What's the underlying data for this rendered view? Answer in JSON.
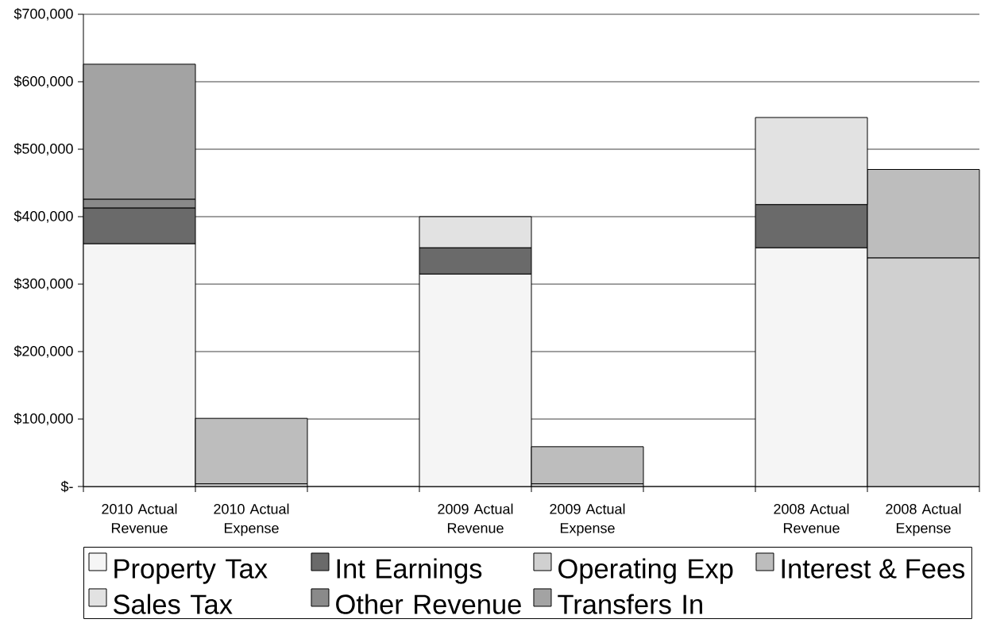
{
  "chart_data": {
    "type": "bar",
    "stacked": true,
    "categories": [
      "2010 Actual Revenue",
      "2010 Actual Expense",
      null,
      "2009 Actual Revenue",
      "2009 Actual Expense",
      null,
      "2008 Actual Revenue",
      "2008 Actual Expense"
    ],
    "series": [
      {
        "name": "Property Tax",
        "color": "#f5f5f5",
        "values": [
          360000,
          null,
          null,
          315000,
          null,
          null,
          354000,
          null
        ]
      },
      {
        "name": "Int Earnings",
        "color": "#6a6a6a",
        "values": [
          53000,
          null,
          null,
          39000,
          null,
          null,
          64000,
          null
        ]
      },
      {
        "name": "Operating Exp",
        "color": "#d0d0d0",
        "values": [
          null,
          4000,
          null,
          null,
          4000,
          null,
          null,
          339000
        ]
      },
      {
        "name": "Interest & Fees",
        "color": "#bdbdbd",
        "values": [
          null,
          97000,
          null,
          null,
          55000,
          null,
          null,
          131000
        ]
      },
      {
        "name": "Sales Tax",
        "color": "#e2e2e2",
        "values": [
          null,
          null,
          null,
          46000,
          null,
          null,
          129000,
          null
        ]
      },
      {
        "name": "Other Revenue",
        "color": "#8a8a8a",
        "values": [
          13000,
          null,
          null,
          null,
          null,
          null,
          null,
          null
        ]
      },
      {
        "name": "Transfers In",
        "color": "#a3a3a3",
        "values": [
          200000,
          null,
          null,
          null,
          null,
          null,
          null,
          null
        ]
      }
    ],
    "ylim": [
      0,
      700000
    ],
    "yticks": [
      {
        "value": 0,
        "label": "$-"
      },
      {
        "value": 100000,
        "label": "$100,000"
      },
      {
        "value": 200000,
        "label": "$200,000"
      },
      {
        "value": 300000,
        "label": "$300,000"
      },
      {
        "value": 400000,
        "label": "$400,000"
      },
      {
        "value": 500000,
        "label": "$500,000"
      },
      {
        "value": 600000,
        "label": "$600,000"
      },
      {
        "value": 700000,
        "label": "$700,000"
      }
    ],
    "grid": "y",
    "legend": "bottom"
  }
}
